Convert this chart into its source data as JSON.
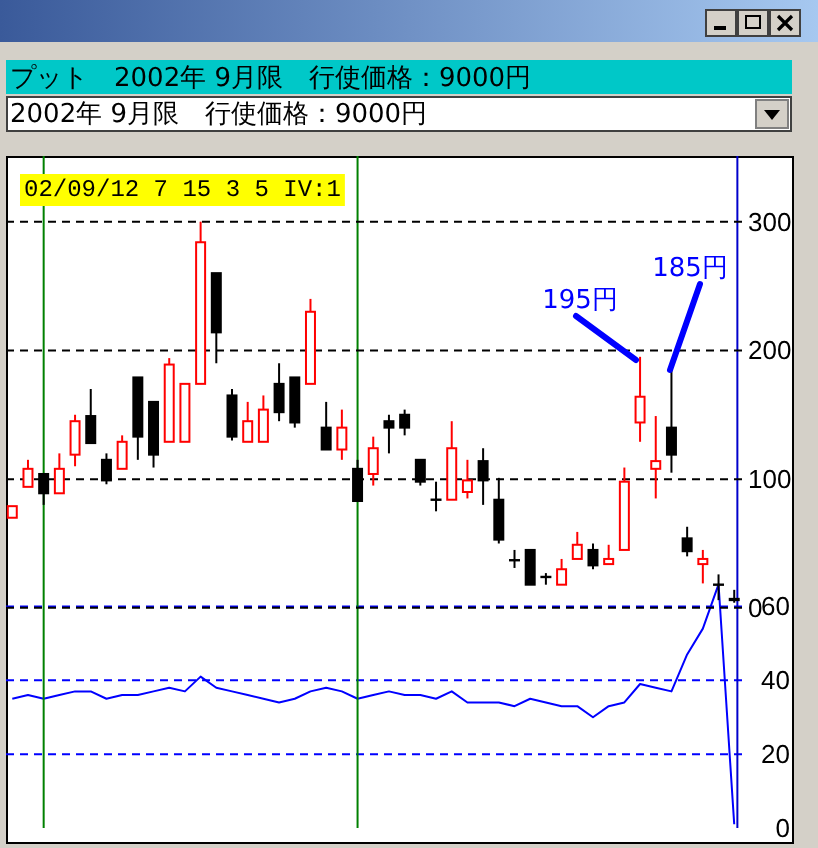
{
  "chart_data": [
    {
      "type": "candlestick",
      "title": "プット　2002年 9月限　行使価格：9000円",
      "subtitle": "2002年 9月限　行使価格：9000円",
      "categories": [
        null,
        null,
        null,
        null,
        null,
        null,
        null,
        null,
        null,
        null,
        null,
        null,
        null,
        null,
        null,
        null,
        null,
        null,
        null,
        null,
        null,
        null,
        null,
        null,
        null,
        null,
        null,
        null,
        null,
        null,
        null,
        null,
        null,
        null,
        null,
        null,
        null,
        null,
        null,
        null,
        null,
        null,
        null,
        null,
        null,
        null,
        null
      ],
      "ohlc": [
        [
          70,
          79,
          70,
          79
        ],
        [
          94,
          115,
          94,
          108
        ],
        [
          104,
          104,
          80,
          89
        ],
        [
          89,
          120,
          89,
          108
        ],
        [
          119,
          150,
          110,
          145
        ],
        [
          149,
          170,
          128,
          128
        ],
        [
          115,
          120,
          96,
          99
        ],
        [
          108,
          134,
          108,
          129
        ],
        [
          179,
          179,
          115,
          133
        ],
        [
          160,
          160,
          109,
          119
        ],
        [
          129,
          194,
          129,
          189
        ],
        [
          129,
          174,
          129,
          174
        ],
        [
          174,
          300,
          174,
          284
        ],
        [
          260,
          260,
          190,
          214
        ],
        [
          165,
          170,
          130,
          133
        ],
        [
          129,
          160,
          129,
          145
        ],
        [
          129,
          165,
          129,
          154
        ],
        [
          174,
          190,
          145,
          152
        ],
        [
          179,
          179,
          140,
          144
        ],
        [
          174,
          240,
          174,
          230
        ],
        [
          140,
          160,
          123,
          123
        ],
        [
          123,
          154,
          115,
          140
        ],
        [
          108,
          115,
          83,
          83
        ],
        [
          104,
          133,
          95,
          124
        ],
        [
          145,
          150,
          120,
          140
        ],
        [
          150,
          154,
          134,
          140
        ],
        [
          115,
          115,
          95,
          98
        ],
        [
          84,
          98,
          75,
          84
        ],
        [
          84,
          145,
          84,
          124
        ],
        [
          90,
          115,
          85,
          99
        ],
        [
          114,
          124,
          80,
          99
        ],
        [
          84,
          101,
          50,
          53
        ],
        [
          37,
          45,
          31,
          37
        ],
        [
          45,
          45,
          18,
          18
        ],
        [
          24,
          27,
          18,
          24
        ],
        [
          18,
          38,
          18,
          30
        ],
        [
          38,
          59,
          38,
          49
        ],
        [
          45,
          50,
          30,
          33
        ],
        [
          34,
          49,
          34,
          38
        ],
        [
          45,
          109,
          45,
          98
        ],
        [
          144,
          195,
          129,
          164
        ],
        [
          108,
          149,
          85,
          114
        ],
        [
          140,
          185,
          105,
          119
        ],
        [
          54,
          63,
          40,
          44
        ],
        [
          34,
          45,
          19,
          38
        ],
        [
          18,
          26,
          6,
          18
        ],
        [
          7,
          14,
          4,
          6
        ]
      ],
      "colors": [
        "#ff0000",
        "#ff0000",
        "#000000",
        "#ff0000",
        "#ff0000",
        "#000000",
        "#000000",
        "#ff0000",
        "#000000",
        "#000000",
        "#ff0000",
        "#ff0000",
        "#ff0000",
        "#000000",
        "#000000",
        "#ff0000",
        "#ff0000",
        "#000000",
        "#000000",
        "#ff0000",
        "#000000",
        "#ff0000",
        "#000000",
        "#ff0000",
        "#000000",
        "#000000",
        "#000000",
        "#000000",
        "#ff0000",
        "#ff0000",
        "#000000",
        "#000000",
        "#000000",
        "#000000",
        "#000000",
        "#ff0000",
        "#ff0000",
        "#000000",
        "#ff0000",
        "#ff0000",
        "#ff0000",
        "#ff0000",
        "#000000",
        "#000000",
        "#ff0000",
        "#000000",
        "#000000"
      ],
      "ylim": [
        -171,
        351
      ],
      "yticks": [
        0,
        100,
        200,
        300
      ],
      "grid": "y",
      "annotations": [
        "02/09/12 7 15 3 5 IV:1",
        "195円",
        "185円"
      ]
    },
    {
      "type": "line",
      "categories": [
        null,
        null,
        null,
        null,
        null,
        null,
        null,
        null,
        null,
        null,
        null,
        null,
        null,
        null,
        null,
        null,
        null,
        null,
        null,
        null,
        null,
        null,
        null,
        null,
        null,
        null,
        null,
        null,
        null,
        null,
        null,
        null,
        null,
        null,
        null,
        null,
        null,
        null,
        null,
        null,
        null,
        null,
        null,
        null,
        null,
        null,
        null
      ],
      "values": [
        35,
        36,
        35,
        36,
        37,
        37,
        35,
        36,
        36,
        37,
        38,
        37,
        41,
        38,
        37,
        36,
        35,
        34,
        35,
        37,
        38,
        37,
        35,
        36,
        37,
        36,
        36,
        35,
        37,
        34,
        34,
        34,
        33,
        35,
        34,
        33,
        33,
        30,
        33,
        34,
        39,
        38,
        37,
        47,
        54,
        66,
        1
      ],
      "color": "#0000ff",
      "ylim": [
        0,
        182
      ],
      "yticks": [
        0,
        20,
        40,
        60
      ],
      "grid": "y"
    }
  ]
}
